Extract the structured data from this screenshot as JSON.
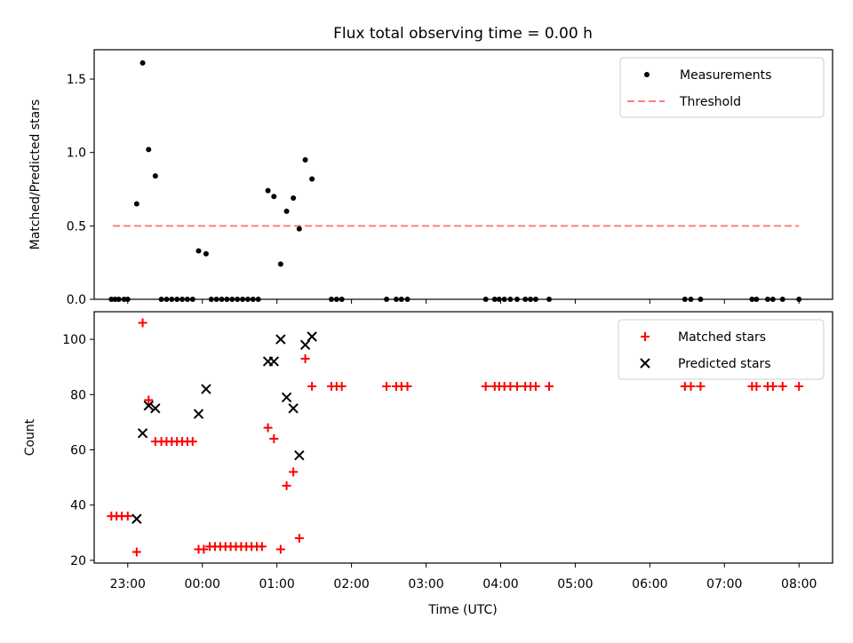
{
  "title": "Flux total observing time = 0.00 h",
  "colors": {
    "measurements": "#000000",
    "threshold": "#ff7f7f",
    "matched": "#ff0000",
    "predicted": "#000000"
  },
  "x_axis": {
    "label": "Time (UTC)",
    "ticks": [
      "23:00",
      "00:00",
      "01:00",
      "02:00",
      "03:00",
      "04:00",
      "05:00",
      "06:00",
      "07:00",
      "08:00"
    ]
  },
  "chart_data": [
    {
      "type": "scatter",
      "ylabel": "Matched/Predicted stars",
      "ylim": [
        0,
        1.7
      ],
      "xrange_hours": [
        -1.45,
        8.45
      ],
      "yticks": [
        "0.0",
        "0.5",
        "1.0",
        "1.5"
      ],
      "legend_placement": "top-right",
      "legend": [
        "Measurements",
        "Threshold"
      ],
      "threshold": {
        "y": 0.5,
        "x": [
          -1.2,
          8.0
        ]
      },
      "series": [
        {
          "name": "Measurements",
          "points": [
            [
              -1.22,
              0
            ],
            [
              -1.17,
              0
            ],
            [
              -1.12,
              0
            ],
            [
              -1.05,
              0
            ],
            [
              -1.0,
              0
            ],
            [
              -0.88,
              0.65
            ],
            [
              -0.8,
              1.61
            ],
            [
              -0.72,
              1.02
            ],
            [
              -0.63,
              0.84
            ],
            [
              -0.55,
              0
            ],
            [
              -0.48,
              0
            ],
            [
              -0.41,
              0
            ],
            [
              -0.34,
              0
            ],
            [
              -0.27,
              0
            ],
            [
              -0.2,
              0
            ],
            [
              -0.13,
              0
            ],
            [
              -0.05,
              0.33
            ],
            [
              0.05,
              0.31
            ],
            [
              0.12,
              0
            ],
            [
              0.19,
              0
            ],
            [
              0.26,
              0
            ],
            [
              0.33,
              0
            ],
            [
              0.4,
              0
            ],
            [
              0.47,
              0
            ],
            [
              0.54,
              0
            ],
            [
              0.61,
              0
            ],
            [
              0.68,
              0
            ],
            [
              0.75,
              0
            ],
            [
              0.88,
              0.74
            ],
            [
              0.96,
              0.7
            ],
            [
              1.05,
              0.24
            ],
            [
              1.13,
              0.6
            ],
            [
              1.22,
              0.69
            ],
            [
              1.3,
              0.48
            ],
            [
              1.38,
              0.95
            ],
            [
              1.47,
              0.82
            ],
            [
              1.73,
              0
            ],
            [
              1.8,
              0
            ],
            [
              1.87,
              0
            ],
            [
              2.47,
              0
            ],
            [
              2.6,
              0
            ],
            [
              2.67,
              0
            ],
            [
              2.75,
              0
            ],
            [
              3.8,
              0
            ],
            [
              3.92,
              0
            ],
            [
              3.98,
              0
            ],
            [
              4.05,
              0
            ],
            [
              4.13,
              0
            ],
            [
              4.22,
              0
            ],
            [
              4.33,
              0
            ],
            [
              4.4,
              0
            ],
            [
              4.47,
              0
            ],
            [
              4.65,
              0
            ],
            [
              6.47,
              0
            ],
            [
              6.55,
              0
            ],
            [
              6.68,
              0
            ],
            [
              7.37,
              0
            ],
            [
              7.43,
              0
            ],
            [
              7.58,
              0
            ],
            [
              7.65,
              0
            ],
            [
              7.78,
              0
            ],
            [
              8.0,
              0
            ]
          ]
        }
      ]
    },
    {
      "type": "scatter",
      "ylabel": "Count",
      "ylim": [
        19,
        110
      ],
      "xrange_hours": [
        -1.45,
        8.45
      ],
      "yticks": [
        "20",
        "40",
        "60",
        "80",
        "100"
      ],
      "legend_placement": "top-right",
      "legend": [
        "Matched stars",
        "Predicted stars"
      ],
      "series": [
        {
          "name": "Matched stars",
          "points": [
            [
              -1.22,
              36
            ],
            [
              -1.15,
              36
            ],
            [
              -1.08,
              36
            ],
            [
              -1.0,
              36
            ],
            [
              -0.88,
              23
            ],
            [
              -0.8,
              106
            ],
            [
              -0.72,
              78
            ],
            [
              -0.63,
              63
            ],
            [
              -0.55,
              63
            ],
            [
              -0.48,
              63
            ],
            [
              -0.41,
              63
            ],
            [
              -0.34,
              63
            ],
            [
              -0.27,
              63
            ],
            [
              -0.2,
              63
            ],
            [
              -0.13,
              63
            ],
            [
              -0.05,
              24
            ],
            [
              0.02,
              24
            ],
            [
              0.1,
              25
            ],
            [
              0.17,
              25
            ],
            [
              0.24,
              25
            ],
            [
              0.31,
              25
            ],
            [
              0.38,
              25
            ],
            [
              0.45,
              25
            ],
            [
              0.52,
              25
            ],
            [
              0.59,
              25
            ],
            [
              0.66,
              25
            ],
            [
              0.73,
              25
            ],
            [
              0.8,
              25
            ],
            [
              0.88,
              68
            ],
            [
              0.96,
              64
            ],
            [
              1.05,
              24
            ],
            [
              1.13,
              47
            ],
            [
              1.22,
              52
            ],
            [
              1.3,
              28
            ],
            [
              1.38,
              93
            ],
            [
              1.47,
              83
            ],
            [
              1.73,
              83
            ],
            [
              1.8,
              83
            ],
            [
              1.87,
              83
            ],
            [
              2.47,
              83
            ],
            [
              2.6,
              83
            ],
            [
              2.67,
              83
            ],
            [
              2.75,
              83
            ],
            [
              3.8,
              83
            ],
            [
              3.92,
              83
            ],
            [
              3.98,
              83
            ],
            [
              4.05,
              83
            ],
            [
              4.13,
              83
            ],
            [
              4.22,
              83
            ],
            [
              4.33,
              83
            ],
            [
              4.4,
              83
            ],
            [
              4.47,
              83
            ],
            [
              4.65,
              83
            ],
            [
              6.47,
              83
            ],
            [
              6.55,
              83
            ],
            [
              6.68,
              83
            ],
            [
              7.37,
              83
            ],
            [
              7.43,
              83
            ],
            [
              7.58,
              83
            ],
            [
              7.65,
              83
            ],
            [
              7.78,
              83
            ],
            [
              8.0,
              83
            ]
          ]
        },
        {
          "name": "Predicted stars",
          "points": [
            [
              -0.88,
              35
            ],
            [
              -0.8,
              66
            ],
            [
              -0.72,
              76
            ],
            [
              -0.63,
              75
            ],
            [
              -0.05,
              73
            ],
            [
              0.05,
              82
            ],
            [
              0.88,
              92
            ],
            [
              0.96,
              92
            ],
            [
              1.05,
              100
            ],
            [
              1.13,
              79
            ],
            [
              1.22,
              75
            ],
            [
              1.3,
              58
            ],
            [
              1.38,
              98
            ],
            [
              1.47,
              101
            ]
          ]
        }
      ]
    }
  ]
}
